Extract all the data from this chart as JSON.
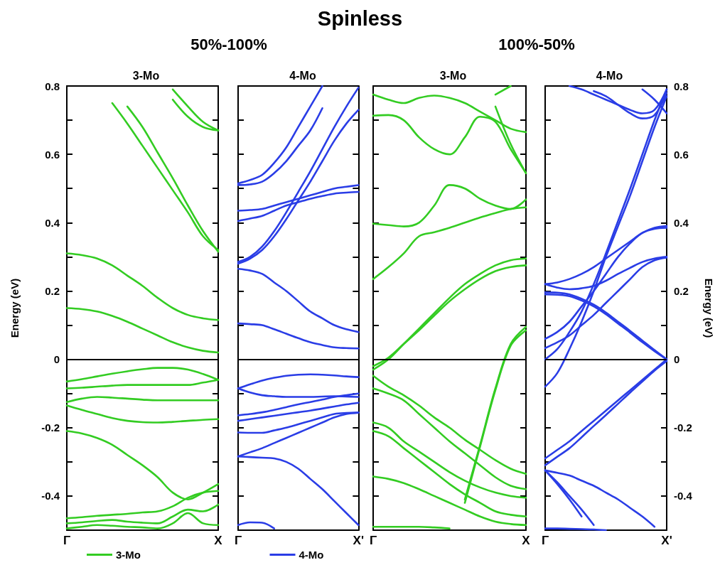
{
  "chart_data": [
    {
      "type": "other",
      "title": "Spinless"
    },
    {
      "type": "line",
      "title": "3-Mo",
      "annotations": [
        "50%-100%"
      ],
      "ylabel": "Energy (eV)",
      "categories": [
        "Γ",
        null,
        null,
        null,
        null,
        null,
        null,
        null,
        null,
        null,
        "X"
      ],
      "ylim": [
        -0.5,
        0.8
      ],
      "yticks": [
        -0.4,
        {
          "value": -0.3,
          "label": null
        },
        -0.2,
        {
          "value": -0.1,
          "label": null
        },
        0,
        {
          "value": 0.1,
          "label": null
        },
        0.2,
        {
          "value": 0.3,
          "label": null
        },
        0.4,
        {
          "value": 0.5,
          "label": null
        },
        0.6,
        {
          "value": 0.7,
          "label": null
        },
        0.8
      ],
      "grid": false,
      "marker": "none",
      "legend": "bottom",
      "ref_lines": [
        {
          "axis": "y",
          "value": 0,
          "color": "#000000"
        }
      ],
      "series": [
        {
          "name": "3-Mo",
          "color": "#33cc22",
          "values": [
            null,
            null,
            null,
            0.75,
            0.69,
            0.625,
            0.56,
            0.495,
            0.43,
            0.36,
            0.32
          ]
        },
        {
          "color": "#33cc22",
          "values": [
            null,
            null,
            null,
            null,
            0.74,
            0.68,
            0.605,
            0.53,
            0.45,
            0.375,
            0.315
          ]
        },
        {
          "color": "#33cc22",
          "values": [
            null,
            null,
            null,
            null,
            null,
            null,
            null,
            0.76,
            0.71,
            0.68,
            0.67
          ]
        },
        {
          "color": "#33cc22",
          "values": [
            null,
            null,
            null,
            null,
            null,
            null,
            null,
            0.79,
            0.74,
            0.695,
            0.67
          ]
        },
        {
          "color": "#33cc22",
          "values": [
            0.31,
            0.305,
            0.295,
            0.275,
            0.245,
            0.215,
            0.18,
            0.15,
            0.13,
            0.12,
            0.115
          ]
        },
        {
          "color": "#33cc22",
          "values": [
            0.15,
            0.147,
            0.14,
            0.127,
            0.11,
            0.09,
            0.07,
            0.05,
            0.035,
            0.025,
            0.02
          ]
        },
        {
          "color": "#33cc22",
          "values": [
            -0.065,
            -0.058,
            -0.05,
            -0.042,
            -0.035,
            -0.029,
            -0.025,
            -0.025,
            -0.03,
            -0.043,
            -0.06
          ]
        },
        {
          "color": "#33cc22",
          "values": [
            -0.085,
            -0.083,
            -0.08,
            -0.077,
            -0.075,
            -0.075,
            -0.075,
            -0.075,
            -0.075,
            -0.068,
            -0.06
          ]
        },
        {
          "color": "#33cc22",
          "values": [
            -0.125,
            -0.115,
            -0.11,
            -0.112,
            -0.115,
            -0.118,
            -0.12,
            -0.12,
            -0.12,
            -0.12,
            -0.12
          ]
        },
        {
          "color": "#33cc22",
          "values": [
            -0.135,
            -0.148,
            -0.16,
            -0.172,
            -0.18,
            -0.184,
            -0.185,
            -0.183,
            -0.18,
            -0.177,
            -0.175
          ]
        },
        {
          "color": "#33cc22",
          "values": [
            -0.21,
            -0.217,
            -0.23,
            -0.25,
            -0.28,
            -0.31,
            -0.345,
            -0.39,
            -0.41,
            -0.39,
            -0.365
          ]
        },
        {
          "color": "#33cc22",
          "values": [
            -0.465,
            -0.462,
            -0.458,
            -0.455,
            -0.452,
            -0.448,
            -0.445,
            -0.43,
            -0.405,
            -0.39,
            -0.385
          ]
        },
        {
          "color": "#33cc22",
          "values": [
            -0.48,
            -0.477,
            -0.473,
            -0.47,
            -0.475,
            -0.478,
            -0.48,
            -0.46,
            -0.44,
            -0.445,
            -0.425
          ]
        },
        {
          "color": "#33cc22",
          "values": [
            -0.495,
            -0.49,
            -0.485,
            -0.487,
            -0.49,
            -0.492,
            -0.495,
            -0.48,
            -0.45,
            -0.48,
            -0.485
          ]
        }
      ]
    },
    {
      "type": "line",
      "title": "4-Mo",
      "categories": [
        "Γ",
        null,
        null,
        null,
        null,
        null,
        null,
        null,
        null,
        null,
        "X'"
      ],
      "ylim": [
        -0.5,
        0.8
      ],
      "yticks": [
        -0.4,
        {
          "value": -0.3,
          "label": null
        },
        -0.2,
        {
          "value": -0.1,
          "label": null
        },
        0,
        {
          "value": 0.1,
          "label": null
        },
        0.2,
        {
          "value": 0.3,
          "label": null
        },
        0.4,
        {
          "value": 0.5,
          "label": null
        },
        0.6,
        {
          "value": 0.7,
          "label": null
        },
        0.8
      ],
      "tick_labels": "x",
      "grid": false,
      "marker": "none",
      "legend": "bottom",
      "ref_lines": [
        {
          "axis": "y",
          "value": 0,
          "color": "#000000"
        }
      ],
      "series": [
        {
          "name": "4-Mo",
          "color": "#2a3de6",
          "values": [
            0.515,
            0.525,
            0.54,
            0.575,
            0.62,
            0.68,
            0.74,
            0.8,
            null,
            null,
            null
          ]
        },
        {
          "color": "#2a3de6",
          "values": [
            0.51,
            0.512,
            0.52,
            0.545,
            0.58,
            0.625,
            0.67,
            0.735,
            null,
            null,
            null
          ]
        },
        {
          "color": "#2a3de6",
          "values": [
            0.285,
            0.3,
            0.33,
            0.375,
            0.43,
            0.49,
            0.55,
            0.615,
            0.68,
            0.74,
            0.795
          ]
        },
        {
          "color": "#2a3de6",
          "values": [
            0.28,
            0.295,
            0.32,
            0.36,
            0.41,
            0.465,
            0.52,
            0.58,
            0.64,
            0.69,
            0.73
          ]
        },
        {
          "color": "#2a3de6",
          "values": [
            0.435,
            0.437,
            0.44,
            0.45,
            0.46,
            0.47,
            0.48,
            0.49,
            0.5,
            0.505,
            0.51
          ]
        },
        {
          "color": "#2a3de6",
          "values": [
            0.405,
            0.412,
            0.42,
            0.435,
            0.45,
            0.46,
            0.47,
            0.478,
            0.485,
            0.488,
            0.49
          ]
        },
        {
          "color": "#2a3de6",
          "values": [
            0.265,
            0.26,
            0.25,
            0.225,
            0.2,
            0.17,
            0.14,
            0.12,
            0.1,
            0.088,
            0.08
          ]
        },
        {
          "color": "#2a3de6",
          "values": [
            0.105,
            0.103,
            0.1,
            0.088,
            0.075,
            0.062,
            0.05,
            0.042,
            0.035,
            0.033,
            0.032
          ]
        },
        {
          "color": "#2a3de6",
          "values": [
            -0.085,
            -0.073,
            -0.062,
            -0.054,
            -0.048,
            -0.045,
            -0.044,
            -0.045,
            -0.047,
            -0.05,
            -0.052
          ]
        },
        {
          "color": "#2a3de6",
          "values": [
            -0.085,
            -0.097,
            -0.105,
            -0.108,
            -0.11,
            -0.11,
            -0.11,
            -0.109,
            -0.108,
            -0.109,
            -0.11
          ]
        },
        {
          "color": "#2a3de6",
          "values": [
            -0.164,
            -0.16,
            -0.155,
            -0.148,
            -0.14,
            -0.132,
            -0.125,
            -0.118,
            -0.11,
            -0.105,
            -0.1
          ]
        },
        {
          "color": "#2a3de6",
          "values": [
            -0.18,
            -0.175,
            -0.17,
            -0.165,
            -0.16,
            -0.155,
            -0.15,
            -0.144,
            -0.138,
            -0.132,
            -0.127
          ]
        },
        {
          "color": "#2a3de6",
          "values": [
            -0.214,
            -0.215,
            -0.215,
            -0.208,
            -0.2,
            -0.19,
            -0.18,
            -0.17,
            -0.16,
            -0.157,
            -0.156
          ]
        },
        {
          "color": "#2a3de6",
          "values": [
            -0.284,
            -0.272,
            -0.26,
            -0.245,
            -0.23,
            -0.215,
            -0.2,
            -0.185,
            -0.17,
            -0.16,
            -0.156
          ]
        },
        {
          "color": "#2a3de6",
          "values": [
            -0.284,
            -0.286,
            -0.288,
            -0.29,
            -0.3,
            -0.32,
            -0.35,
            -0.38,
            -0.415,
            -0.45,
            -0.485
          ]
        },
        {
          "color": "#2a3de6",
          "values": [
            -0.485,
            -0.477,
            -0.478,
            -0.495,
            null,
            null,
            null,
            null,
            null,
            null,
            null
          ]
        }
      ]
    },
    {
      "type": "line",
      "title": "3-Mo",
      "annotations": [
        "100%-50%"
      ],
      "categories": [
        "Γ",
        null,
        null,
        null,
        null,
        null,
        null,
        null,
        null,
        null,
        "X"
      ],
      "ylim": [
        -0.5,
        0.8
      ],
      "yticks": [
        -0.4,
        {
          "value": -0.3,
          "label": null
        },
        -0.2,
        {
          "value": -0.1,
          "label": null
        },
        0,
        {
          "value": 0.1,
          "label": null
        },
        0.2,
        {
          "value": 0.3,
          "label": null
        },
        0.4,
        {
          "value": 0.5,
          "label": null
        },
        0.6,
        {
          "value": 0.7,
          "label": null
        },
        0.8
      ],
      "tick_labels": "x",
      "grid": false,
      "marker": "none",
      "ref_lines": [
        {
          "axis": "y",
          "value": 0,
          "color": "#000000"
        }
      ],
      "series": [
        {
          "color": "#33cc22",
          "values": [
            0.775,
            0.76,
            0.75,
            0.765,
            0.772,
            0.765,
            0.75,
            0.725,
            0.7,
            0.675,
            0.665
          ]
        },
        {
          "color": "#33cc22",
          "values": [
            0.713,
            0.715,
            0.7,
            0.65,
            0.615,
            0.6,
            0.65,
            0.71,
            0.695,
            0.615,
            0.545
          ]
        },
        {
          "color": "#33cc22",
          "values": [
            null,
            null,
            null,
            null,
            null,
            null,
            null,
            null,
            0.775,
            0.8,
            null
          ]
        },
        {
          "color": "#33cc22",
          "values": [
            null,
            null,
            null,
            null,
            null,
            null,
            null,
            null,
            0.74,
            0.63,
            0.545
          ]
        },
        {
          "color": "#33cc22",
          "values": [
            0.397,
            0.393,
            0.389,
            0.4,
            0.45,
            0.51,
            0.5,
            0.47,
            0.45,
            0.44,
            0.468
          ]
        },
        {
          "color": "#33cc22",
          "values": [
            0.235,
            0.27,
            0.31,
            0.36,
            0.372,
            0.385,
            0.4,
            0.415,
            0.428,
            0.44,
            0.445
          ]
        },
        {
          "color": "#33cc22",
          "values": [
            -0.03,
            0.0,
            0.045,
            0.09,
            0.135,
            0.18,
            0.22,
            0.25,
            0.275,
            0.29,
            0.295
          ]
        },
        {
          "color": "#33cc22",
          "values": [
            -0.02,
            0.005,
            0.045,
            0.085,
            0.128,
            0.17,
            0.205,
            0.235,
            0.258,
            0.27,
            0.275
          ]
        },
        {
          "color": "#33cc22",
          "values": [
            null,
            null,
            null,
            null,
            null,
            null,
            -0.41,
            -0.25,
            -0.085,
            0.045,
            0.095
          ]
        },
        {
          "color": "#33cc22",
          "values": [
            null,
            null,
            null,
            null,
            null,
            null,
            -0.42,
            -0.255,
            -0.09,
            0.04,
            0.085
          ]
        },
        {
          "color": "#33cc22",
          "values": [
            -0.048,
            -0.08,
            -0.105,
            -0.135,
            -0.17,
            -0.2,
            -0.235,
            -0.265,
            -0.295,
            -0.32,
            -0.335
          ]
        },
        {
          "color": "#33cc22",
          "values": [
            -0.085,
            -0.1,
            -0.12,
            -0.16,
            -0.2,
            -0.24,
            -0.275,
            -0.31,
            -0.345,
            -0.37,
            -0.38
          ]
        },
        {
          "color": "#33cc22",
          "values": [
            -0.185,
            -0.2,
            -0.24,
            -0.27,
            -0.3,
            -0.33,
            -0.355,
            -0.375,
            -0.39,
            -0.4,
            -0.405
          ]
        },
        {
          "color": "#33cc22",
          "values": [
            -0.21,
            -0.225,
            -0.26,
            -0.295,
            -0.33,
            -0.365,
            -0.395,
            -0.42,
            -0.445,
            -0.455,
            -0.46
          ]
        },
        {
          "color": "#33cc22",
          "values": [
            -0.343,
            -0.35,
            -0.362,
            -0.38,
            -0.4,
            -0.42,
            -0.44,
            -0.46,
            -0.475,
            -0.482,
            -0.485
          ]
        },
        {
          "color": "#33cc22",
          "values": [
            -0.49,
            -0.49,
            -0.49,
            -0.49,
            -0.492,
            -0.495,
            null,
            null,
            null,
            null,
            null
          ]
        }
      ]
    },
    {
      "type": "line",
      "title": "4-Mo",
      "ylabel": "Energy (eV)",
      "categories": [
        "Γ",
        null,
        null,
        null,
        null,
        null,
        null,
        null,
        null,
        null,
        "X'"
      ],
      "ylim": [
        -0.5,
        0.8
      ],
      "yticks": [
        -0.4,
        {
          "value": -0.3,
          "label": null
        },
        -0.2,
        {
          "value": -0.1,
          "label": null
        },
        0,
        {
          "value": 0.1,
          "label": null
        },
        0.2,
        {
          "value": 0.3,
          "label": null
        },
        0.4,
        {
          "value": 0.5,
          "label": null
        },
        0.6,
        {
          "value": 0.7,
          "label": null
        },
        0.8
      ],
      "grid": false,
      "marker": "none",
      "ref_lines": [
        {
          "axis": "y",
          "value": 0,
          "color": "#000000"
        }
      ],
      "series": [
        {
          "color": "#2a3de6",
          "values": [
            null,
            null,
            0.8,
            0.79,
            0.775,
            0.76,
            0.745,
            0.73,
            0.72,
            0.73,
            0.79
          ]
        },
        {
          "color": "#2a3de6",
          "values": [
            null,
            null,
            null,
            null,
            0.785,
            0.77,
            0.745,
            0.72,
            0.705,
            0.715,
            0.78
          ]
        },
        {
          "color": "#2a3de6",
          "values": [
            null,
            null,
            null,
            null,
            null,
            null,
            null,
            null,
            0.79,
            0.76,
            0.72
          ]
        },
        {
          "color": "#2a3de6",
          "values": [
            -0.08,
            -0.04,
            0.03,
            0.11,
            0.2,
            0.3,
            0.39,
            0.48,
            0.58,
            0.68,
            0.77
          ]
        },
        {
          "color": "#2a3de6",
          "values": [
            0.0,
            0.03,
            0.08,
            0.14,
            0.22,
            0.31,
            0.405,
            0.5,
            0.6,
            0.7,
            0.79
          ]
        },
        {
          "color": "#2a3de6",
          "values": [
            0.22,
            0.225,
            0.235,
            0.25,
            0.27,
            0.295,
            0.32,
            0.345,
            0.37,
            0.385,
            0.39
          ]
        },
        {
          "color": "#2a3de6",
          "values": [
            0.22,
            0.21,
            0.205,
            0.208,
            0.215,
            0.23,
            0.25,
            0.268,
            0.285,
            0.295,
            0.3
          ]
        },
        {
          "color": "#2a3de6",
          "values": [
            0.06,
            0.08,
            0.11,
            0.155,
            0.2,
            0.25,
            0.3,
            0.34,
            0.37,
            0.382,
            0.385
          ]
        },
        {
          "color": "#2a3de6",
          "values": [
            0.033,
            0.05,
            0.07,
            0.1,
            0.13,
            0.165,
            0.2,
            0.235,
            0.27,
            0.29,
            0.298
          ]
        },
        {
          "color": "#2a3de6",
          "values": [
            0.196,
            0.195,
            0.19,
            0.177,
            0.16,
            0.137,
            0.11,
            0.083,
            0.055,
            0.027,
            0
          ]
        },
        {
          "color": "#2a3de6",
          "values": [
            0.19,
            0.189,
            0.185,
            0.172,
            0.155,
            0.132,
            0.105,
            0.078,
            0.05,
            0.024,
            0
          ]
        },
        {
          "color": "#2a3de6",
          "values": [
            -0.29,
            -0.265,
            -0.24,
            -0.21,
            -0.18,
            -0.15,
            -0.12,
            -0.09,
            -0.06,
            -0.03,
            0
          ]
        },
        {
          "color": "#2a3de6",
          "values": [
            -0.31,
            -0.285,
            -0.26,
            -0.228,
            -0.195,
            -0.163,
            -0.13,
            -0.097,
            -0.065,
            -0.033,
            -0.005
          ]
        },
        {
          "color": "#2a3de6",
          "values": [
            -0.325,
            -0.332,
            -0.34,
            -0.355,
            -0.37,
            -0.39,
            -0.41,
            -0.435,
            -0.46,
            -0.49,
            null
          ]
        },
        {
          "color": "#2a3de6",
          "values": [
            -0.325,
            -0.365,
            -0.41,
            -0.46,
            null,
            null,
            null,
            null,
            null,
            null,
            null
          ]
        },
        {
          "color": "#2a3de6",
          "values": [
            -0.325,
            -0.36,
            -0.4,
            -0.44,
            -0.485,
            null,
            null,
            null,
            null,
            null,
            null
          ]
        },
        {
          "color": "#2a3de6",
          "values": [
            -0.495,
            -0.495,
            -0.496,
            -0.497,
            -0.498,
            -0.5,
            null,
            null,
            null,
            null,
            null
          ]
        }
      ]
    }
  ]
}
